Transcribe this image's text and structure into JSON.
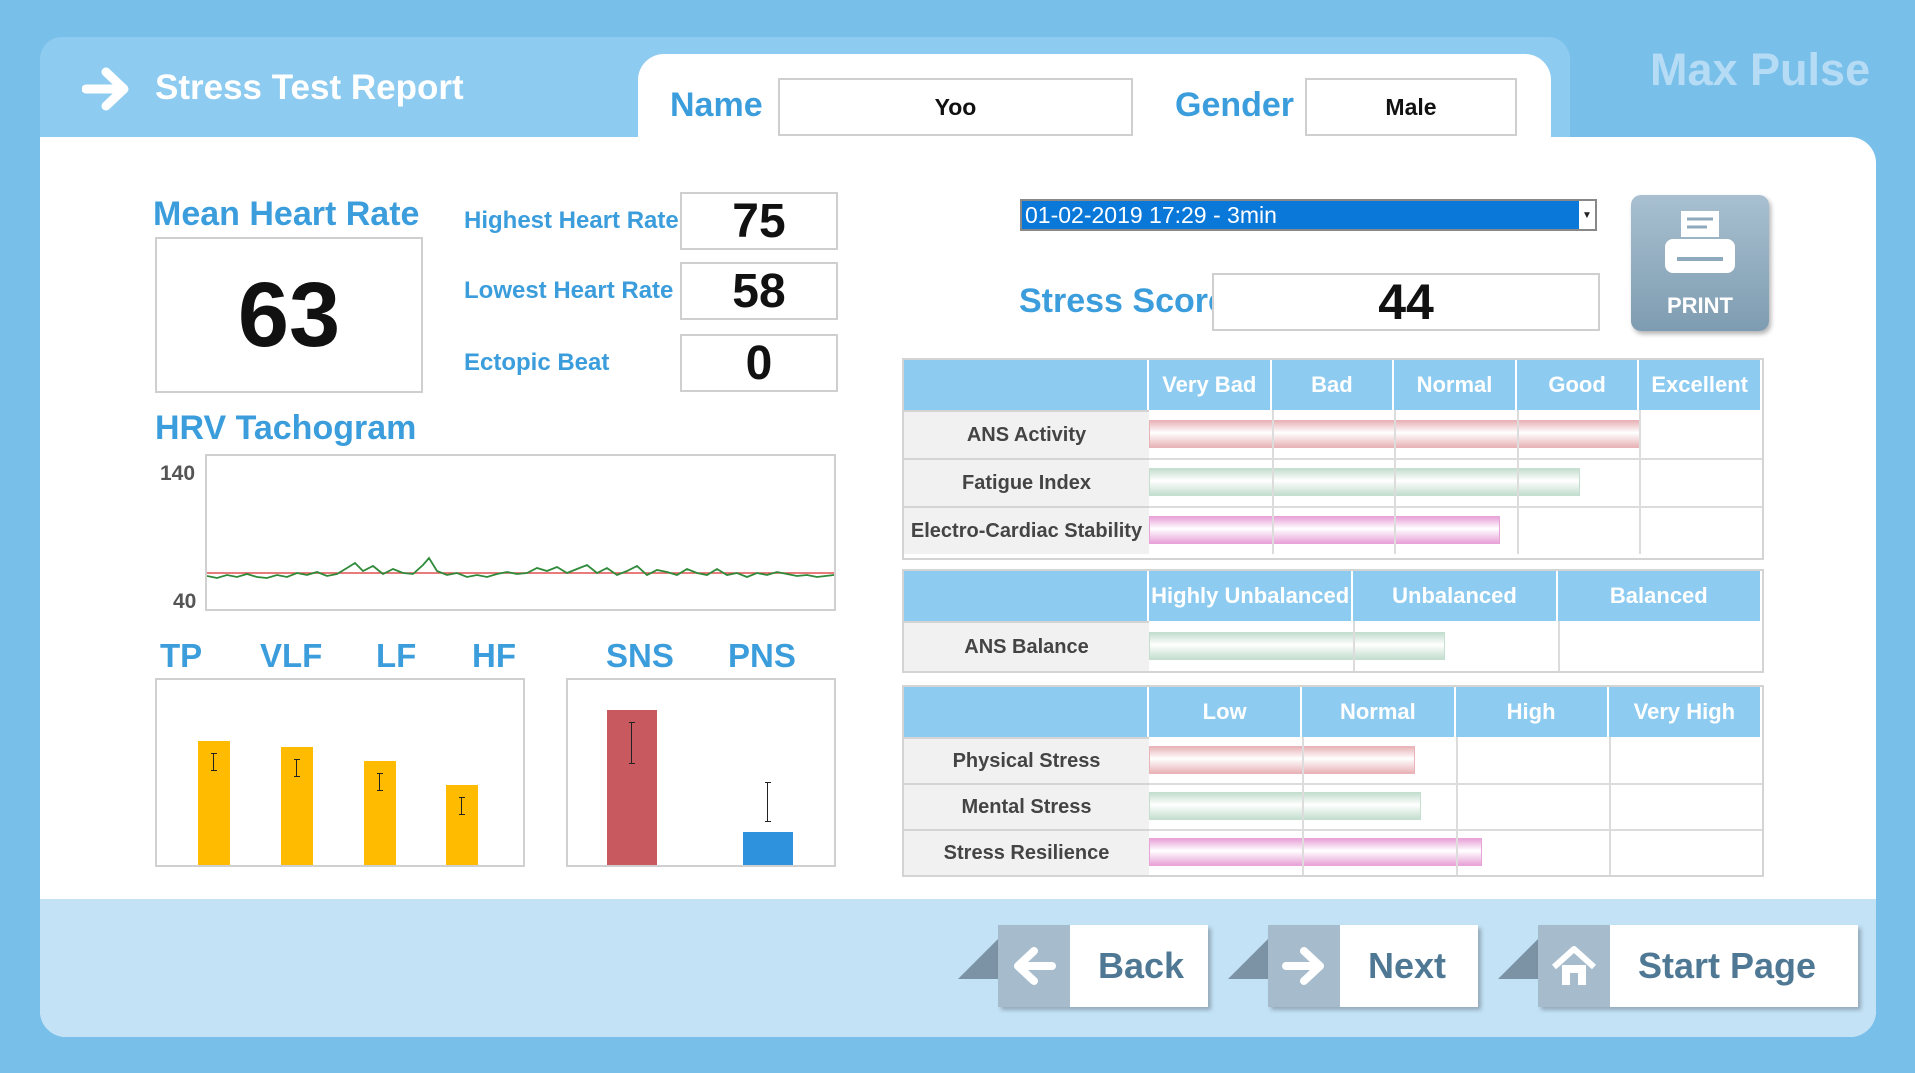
{
  "header": {
    "title": "Stress Test Report",
    "brand": "Max Pulse"
  },
  "patient": {
    "name_label": "Name",
    "name_value": "Yoo",
    "gender_label": "Gender",
    "gender_value": "Male"
  },
  "heart": {
    "mean_label": "Mean Heart Rate",
    "mean_value": "63",
    "highest_label": "Highest Heart Rate",
    "highest_value": "75",
    "lowest_label": "Lowest Heart Rate",
    "lowest_value": "58",
    "ectopic_label": "Ectopic Beat",
    "ectopic_value": "0"
  },
  "tachogram": {
    "title": "HRV Tachogram",
    "y_max": "140",
    "y_min": "40"
  },
  "hrv_bars": {
    "labels": [
      "TP",
      "VLF",
      "LF",
      "HF"
    ],
    "values": [
      0.67,
      0.64,
      0.56,
      0.43
    ],
    "color": "#ffbb00"
  },
  "ans_bars": {
    "labels": [
      "SNS",
      "PNS"
    ],
    "values": [
      0.84,
      0.18
    ],
    "colors": [
      "#c8595f",
      "#2e93dc"
    ]
  },
  "session": {
    "selected": "01-02-2019 17:29 - 3min"
  },
  "stress": {
    "label": "Stress Score",
    "value": "44"
  },
  "print": {
    "label": "PRINT"
  },
  "table1": {
    "headers": [
      "Very Bad",
      "Bad",
      "Normal",
      "Good",
      "Excellent"
    ],
    "rows": [
      {
        "label": "ANS Activity",
        "value": 0.8,
        "color": "#e8b4b8"
      },
      {
        "label": "Fatigue Index",
        "value": 0.7,
        "color": "#c4decf"
      },
      {
        "label": "Electro-Cardiac Stability",
        "value": 0.57,
        "color": "#e8a3d8"
      }
    ]
  },
  "table2": {
    "headers": [
      "Highly Unbalanced",
      "Unbalanced",
      "Balanced"
    ],
    "rows": [
      {
        "label": "ANS Balance",
        "value": 0.48,
        "color": "#c4decf"
      }
    ]
  },
  "table3": {
    "headers": [
      "Low",
      "Normal",
      "High",
      "Very High"
    ],
    "rows": [
      {
        "label": "Physical Stress",
        "value": 0.43,
        "color": "#e8b4b8"
      },
      {
        "label": "Mental Stress",
        "value": 0.44,
        "color": "#c4decf"
      },
      {
        "label": "Stress Resilience",
        "value": 0.54,
        "color": "#e8a3d8"
      }
    ]
  },
  "nav": {
    "back": "Back",
    "next": "Next",
    "start": "Start Page"
  }
}
